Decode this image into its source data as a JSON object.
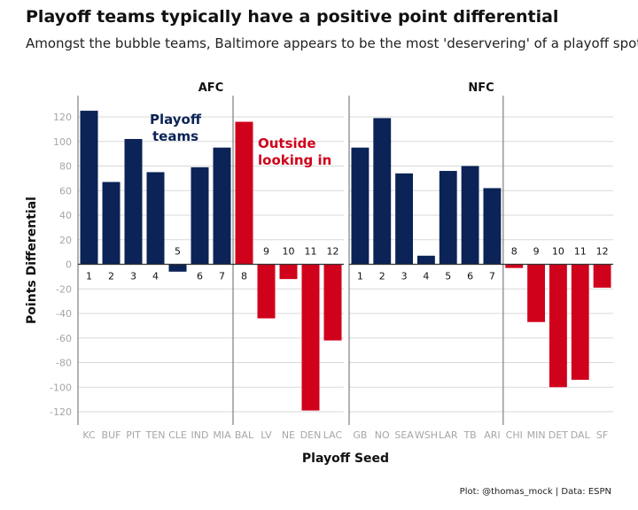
{
  "title": "Playoff teams typically have a positive point differential",
  "subtitle": "Amongst the bubble teams, Baltimore appears to be the most 'deservering' of a playoff spot",
  "caption": "Plot: @thomas_mock | Data: ESPN",
  "colors": {
    "playoff": "#0b2356",
    "outside": "#d0021b",
    "grid": "#d9d9d9",
    "axis": "#7f7f7f"
  },
  "chart_data": {
    "type": "bar",
    "xlabel": "Playoff Seed",
    "ylabel": "Points Differential",
    "ylim": [
      -130,
      130
    ],
    "yticks": [
      -120,
      -100,
      -80,
      -60,
      -40,
      -20,
      0,
      20,
      40,
      60,
      80,
      100,
      120
    ],
    "grid": true,
    "facets": [
      {
        "name": "AFC",
        "teams": [
          "KC",
          "BUF",
          "PIT",
          "TEN",
          "CLE",
          "IND",
          "MIA",
          "BAL",
          "LV",
          "NE",
          "DEN",
          "LAC"
        ],
        "seeds": [
          "1",
          "2",
          "3",
          "4",
          "5",
          "6",
          "7",
          "8",
          "9",
          "10",
          "11",
          "12"
        ],
        "values": [
          125,
          67,
          102,
          75,
          -6,
          79,
          95,
          116,
          -44,
          -12,
          -119,
          -62
        ],
        "playoff_count": 7
      },
      {
        "name": "NFC",
        "teams": [
          "GB",
          "NO",
          "SEA",
          "WSH",
          "LAR",
          "TB",
          "ARI",
          "CHI",
          "MIN",
          "DET",
          "DAL",
          "SF"
        ],
        "seeds": [
          "1",
          "2",
          "3",
          "4",
          "5",
          "6",
          "7",
          "8",
          "9",
          "10",
          "11",
          "12"
        ],
        "values": [
          95,
          119,
          74,
          7,
          76,
          80,
          62,
          -3,
          -47,
          -100,
          -94,
          -19
        ],
        "playoff_count": 7
      }
    ],
    "annotations": [
      {
        "text": "Playoff\nteams",
        "series": "playoff"
      },
      {
        "text": "Outside\nlooking in",
        "series": "outside"
      }
    ]
  }
}
